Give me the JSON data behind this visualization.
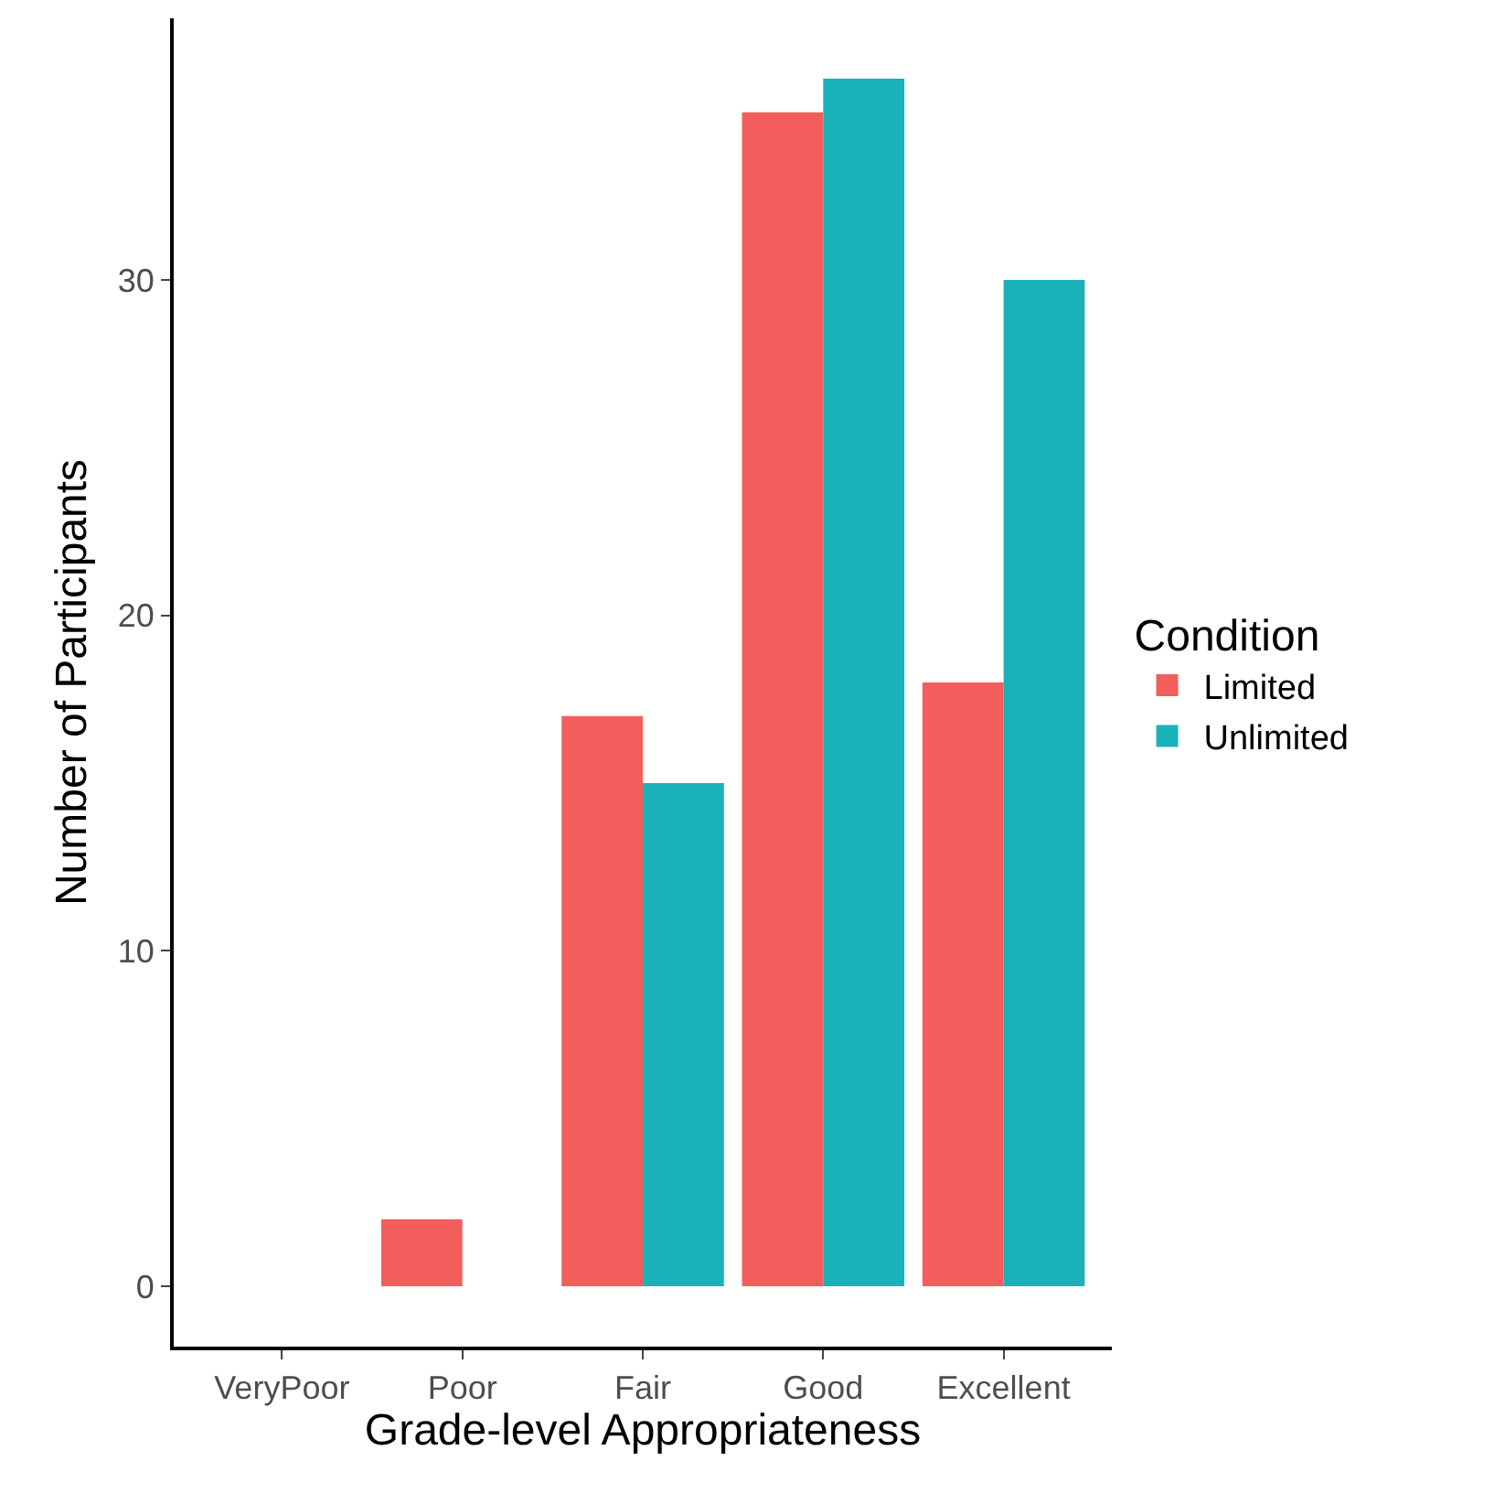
{
  "chart_data": {
    "type": "bar",
    "xlabel": "Grade-level Appropriateness",
    "ylabel": "Number of Participants",
    "legend_title": "Condition",
    "categories": [
      "VeryPoor",
      "Poor",
      "Fair",
      "Good",
      "Excellent"
    ],
    "series": [
      {
        "name": "Limited",
        "color": "#f25e5b",
        "values": [
          null,
          2,
          17,
          35,
          18
        ]
      },
      {
        "name": "Unlimited",
        "color": "#19b2b8",
        "values": [
          null,
          null,
          15,
          36,
          30
        ]
      }
    ],
    "ylim": [
      -1.8,
      37.8
    ],
    "yticks": [
      0,
      10,
      20,
      30
    ],
    "legend": "right"
  }
}
